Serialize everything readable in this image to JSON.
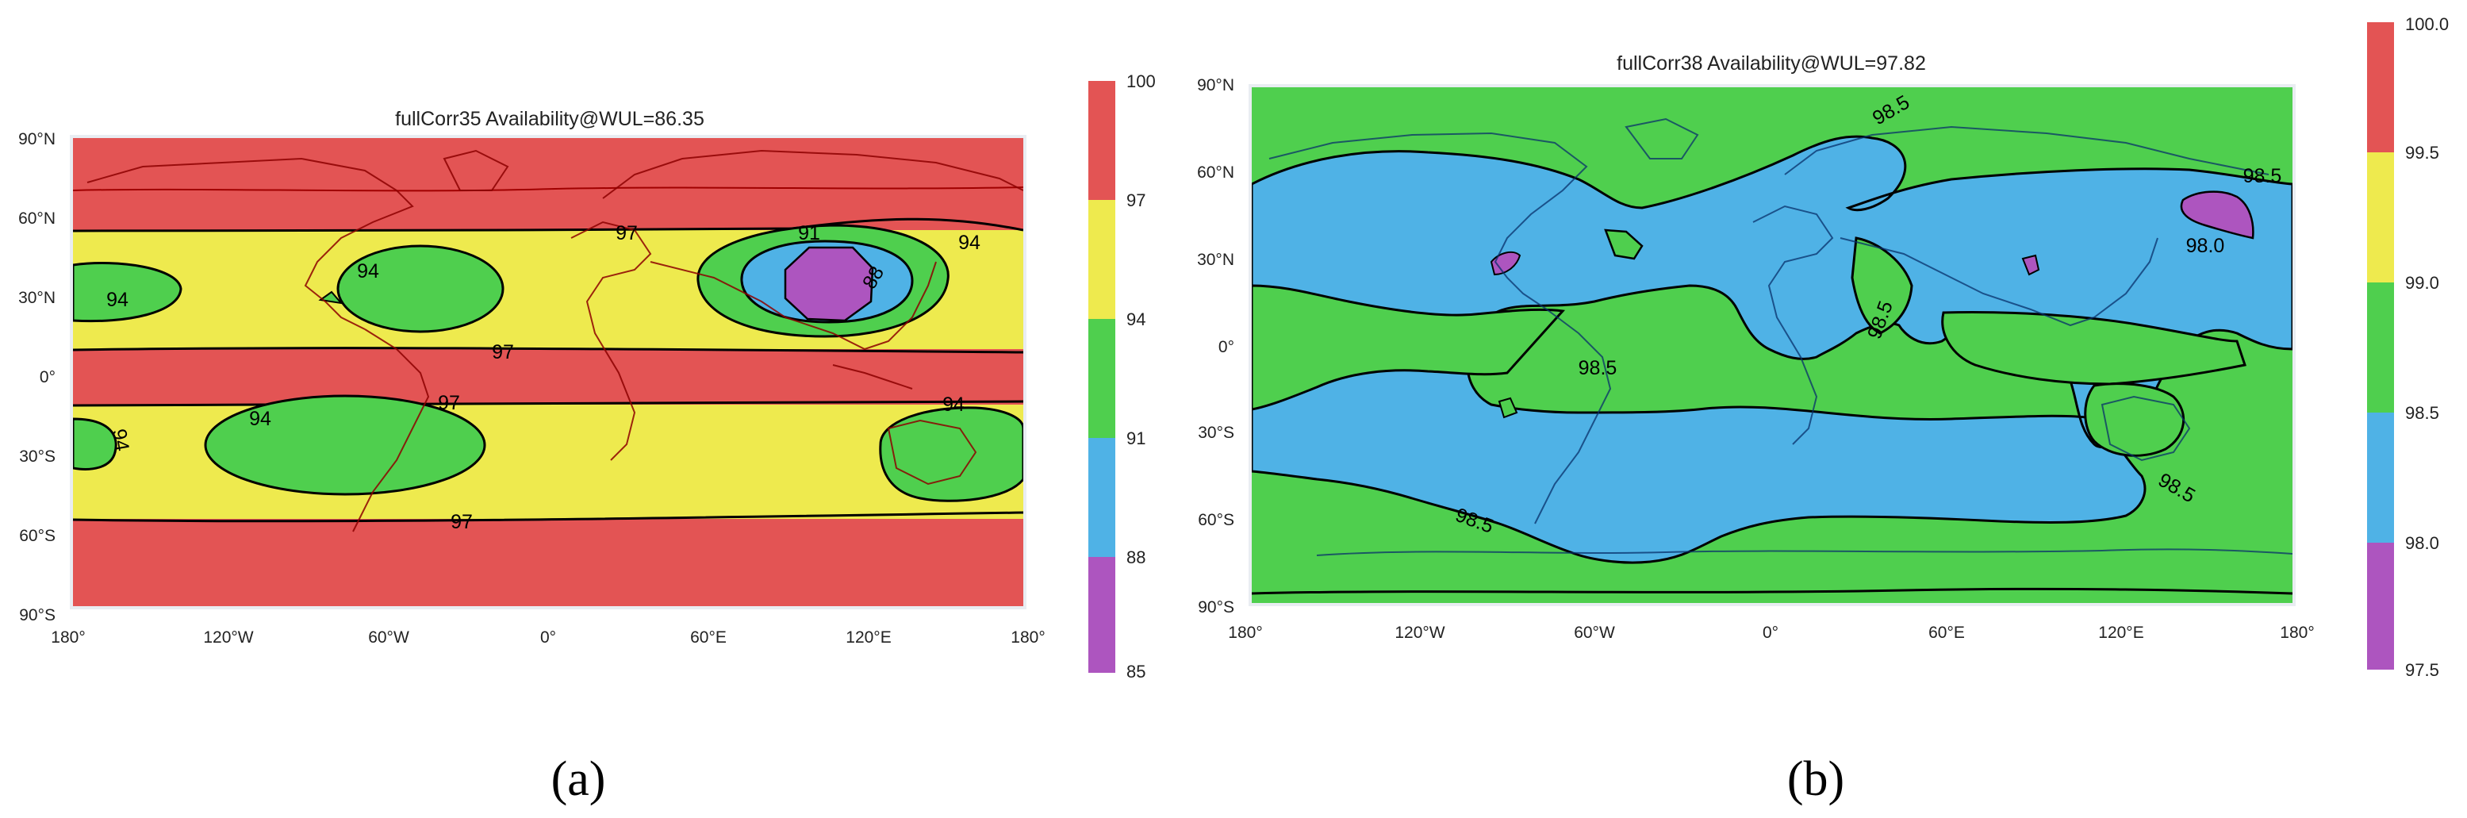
{
  "panels": [
    {
      "id": "a",
      "title": "fullCorr35 Availability@WUL=86.35",
      "caption": "(a)",
      "x_ticks": [
        "180°",
        "120°W",
        "60°W",
        "0°",
        "60°E",
        "120°E",
        "180°"
      ],
      "y_ticks": [
        "90°N",
        "60°N",
        "30°N",
        "0°",
        "30°S",
        "60°S",
        "90°S"
      ],
      "colorbar": {
        "levels": [
          "100",
          "97",
          "94",
          "91",
          "88",
          "85"
        ],
        "colors": [
          "#e35454",
          "#eeea4e",
          "#4fcf4e",
          "#4fb2e6",
          "#ad55bf"
        ]
      },
      "contour_labels": [
        "97",
        "97",
        "97",
        "97",
        "94",
        "94",
        "94",
        "94",
        "94",
        "94",
        "91",
        "88"
      ]
    },
    {
      "id": "b",
      "title": "fullCorr38 Availability@WUL=97.82",
      "caption": "(b)",
      "x_ticks": [
        "180°",
        "120°W",
        "60°W",
        "0°",
        "60°E",
        "120°E",
        "180°"
      ],
      "y_ticks": [
        "90°N",
        "60°N",
        "30°N",
        "0°",
        "30°S",
        "60°S",
        "90°S"
      ],
      "colorbar": {
        "levels": [
          "100.0",
          "99.5",
          "99.0",
          "98.5",
          "98.0",
          "97.5"
        ],
        "colors": [
          "#e35454",
          "#eeea4e",
          "#4fcf4e",
          "#4fb2e6",
          "#ad55bf"
        ]
      },
      "contour_labels": [
        "98.5",
        "98.5",
        "98.5",
        "98.5",
        "98.5",
        "98.5",
        "98.0"
      ]
    }
  ]
}
